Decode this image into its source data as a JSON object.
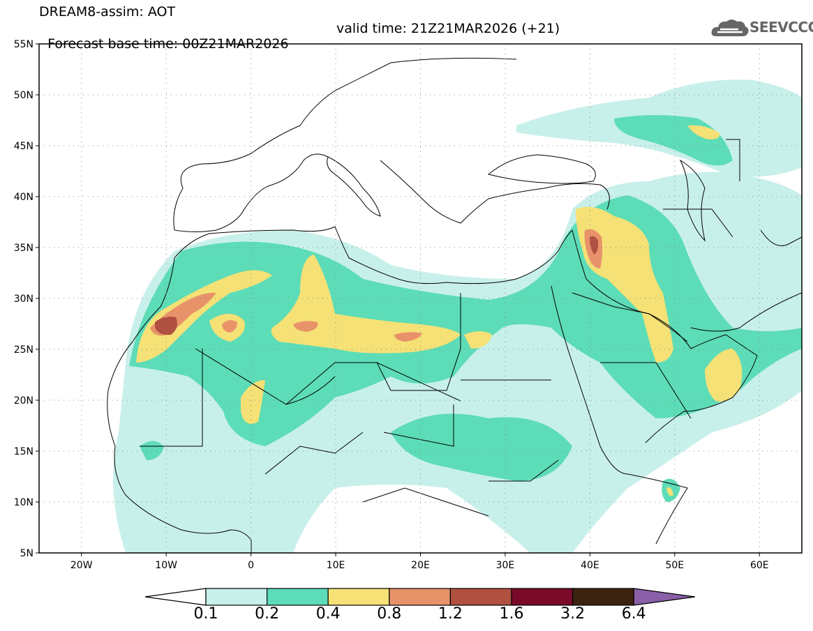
{
  "header": {
    "title": "DREAM8-assim: AOT",
    "base_time": "Forecast base time: 00Z21MAR2026",
    "valid_time": "valid time: 21Z21MAR2026 (+21)"
  },
  "logo": {
    "text": "SEEVCCC",
    "icon": "cloud-icon"
  },
  "axes": {
    "lat_ticks": [
      "55N",
      "50N",
      "45N",
      "40N",
      "35N",
      "30N",
      "25N",
      "20N",
      "15N",
      "10N",
      "5N"
    ],
    "lon_ticks": [
      "20W",
      "10W",
      "0",
      "10E",
      "20E",
      "30E",
      "40E",
      "50E",
      "60E"
    ],
    "lon_range": [
      -25,
      65
    ],
    "lat_range": [
      5,
      55
    ]
  },
  "legend": {
    "labels": [
      "0.1",
      "0.2",
      "0.4",
      "0.8",
      "1.2",
      "1.6",
      "3.2",
      "6.4"
    ],
    "colors": [
      "#ffffff",
      "#c8f0ea",
      "#5ddcb8",
      "#f5e175",
      "#e8926a",
      "#b05040",
      "#7a0a2a",
      "#3a2410",
      "#8a60a8"
    ]
  }
}
